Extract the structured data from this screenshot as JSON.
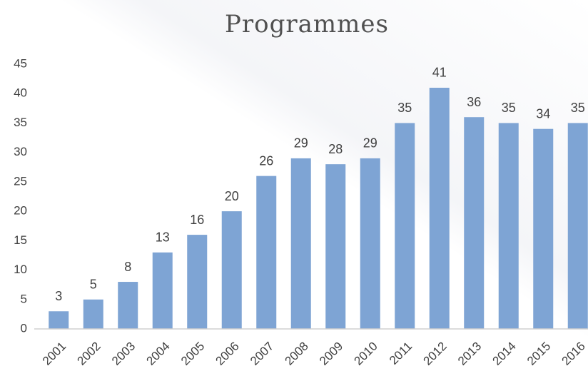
{
  "chart_data": {
    "type": "bar",
    "title": "Programmes",
    "categories": [
      "2001",
      "2002",
      "2003",
      "2004",
      "2005",
      "2006",
      "2007",
      "2008",
      "2009",
      "2010",
      "2011",
      "2012",
      "2013",
      "2014",
      "2015",
      "2016"
    ],
    "values": [
      3,
      5,
      8,
      13,
      16,
      20,
      26,
      29,
      28,
      29,
      35,
      41,
      36,
      35,
      34,
      35
    ],
    "color": "#7ea4d4",
    "ylim": [
      0,
      45
    ],
    "yticks": [
      0,
      5,
      10,
      15,
      20,
      25,
      30,
      35,
      40,
      45
    ],
    "grid": false
  }
}
